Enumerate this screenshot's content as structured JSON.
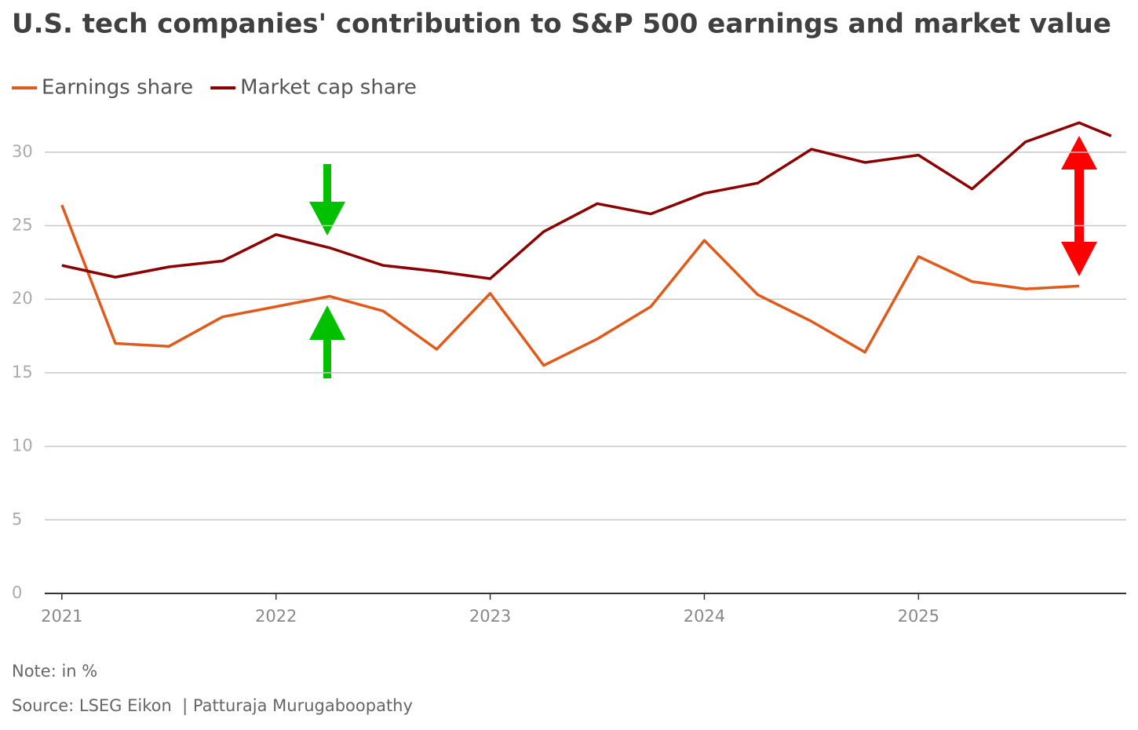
{
  "chart_data": {
    "type": "line",
    "title": "U.S. tech companies' contribution to S&P 500 earnings and market value",
    "x": [
      2021,
      2021.25,
      2021.5,
      2021.75,
      2022,
      2022.25,
      2022.5,
      2022.75,
      2023,
      2023.25,
      2023.5,
      2023.75,
      2024,
      2024.25,
      2024.5,
      2024.75,
      2025,
      2025.25,
      2025.5,
      2025.75,
      2025.9
    ],
    "series": [
      {
        "name": "Earnings share",
        "color": "#e05a1b",
        "values": [
          26.4,
          17.0,
          16.8,
          18.8,
          19.5,
          20.2,
          19.2,
          16.6,
          20.4,
          15.5,
          17.3,
          19.5,
          24.0,
          20.3,
          18.5,
          16.4,
          22.9,
          21.2,
          20.7,
          20.9,
          null
        ]
      },
      {
        "name": "Market cap share",
        "color": "#8b0000",
        "values": [
          22.3,
          21.5,
          22.2,
          22.6,
          24.4,
          23.5,
          22.3,
          21.9,
          21.4,
          24.6,
          26.5,
          25.8,
          27.2,
          27.9,
          30.2,
          29.3,
          29.8,
          27.5,
          30.7,
          32.0,
          31.1
        ]
      }
    ],
    "xlim": [
      2020.92,
      2025.97
    ],
    "xticks": [
      2021,
      2022,
      2023,
      2024,
      2025
    ],
    "ylim": [
      0,
      32.5
    ],
    "yticks": [
      0,
      5,
      10,
      15,
      20,
      25,
      30
    ],
    "grid": true,
    "note": "Note: in %",
    "source": "Source: LSEG Eikon  | Patturaja Murugaboopathy"
  }
}
